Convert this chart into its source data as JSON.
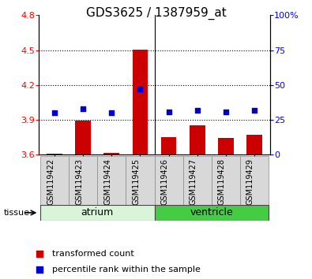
{
  "title": "GDS3625 / 1387959_at",
  "samples": [
    "GSM119422",
    "GSM119423",
    "GSM119424",
    "GSM119425",
    "GSM119426",
    "GSM119427",
    "GSM119428",
    "GSM119429"
  ],
  "transformed_counts": [
    3.61,
    3.895,
    3.615,
    4.505,
    3.755,
    3.855,
    3.745,
    3.77
  ],
  "percentile_ranks": [
    30,
    33,
    30,
    47,
    31,
    32,
    31,
    32
  ],
  "ylim_left": [
    3.6,
    4.8
  ],
  "ylim_right": [
    0,
    100
  ],
  "yticks_left": [
    3.6,
    3.9,
    4.2,
    4.5,
    4.8
  ],
  "yticks_right": [
    0,
    25,
    50,
    75,
    100
  ],
  "ytick_labels_right": [
    "0",
    "25",
    "50",
    "75",
    "100%"
  ],
  "groups": [
    {
      "name": "atrium",
      "samples": [
        0,
        1,
        2,
        3
      ],
      "color_light": "#d8f5d8",
      "color_dark": "#66dd66"
    },
    {
      "name": "ventricle",
      "samples": [
        4,
        5,
        6,
        7
      ],
      "color_light": "#66dd66",
      "color_dark": "#44cc44"
    }
  ],
  "bar_color": "#cc0000",
  "dot_color": "#0000cc",
  "bar_width": 0.55,
  "bg_color": "#ffffff",
  "panel_bg": "#d8d8d8",
  "title_fontsize": 11,
  "tick_fontsize": 8,
  "sample_fontsize": 7,
  "legend_fontsize": 8,
  "group_fontsize": 9
}
